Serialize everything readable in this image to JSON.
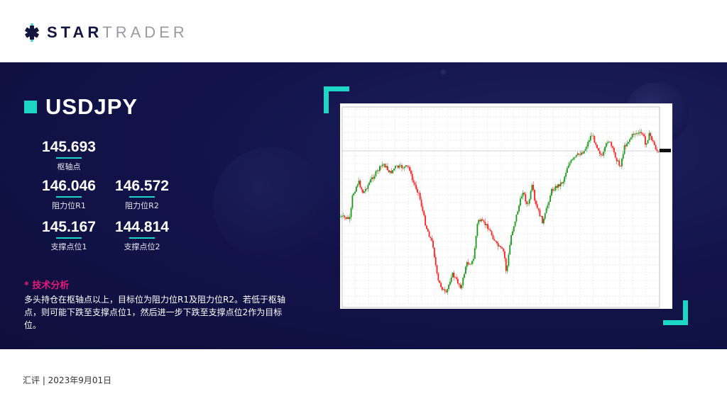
{
  "brand": {
    "logo_bold": "STAR",
    "logo_light": "TRADER"
  },
  "pair": "USDJPY",
  "levels": {
    "pivot": {
      "value": "145.693",
      "label": "枢轴点"
    },
    "r1": {
      "value": "146.046",
      "label": "阻力位R1"
    },
    "r2": {
      "value": "146.572",
      "label": "阻力位R2"
    },
    "s1": {
      "value": "145.167",
      "label": "支撑点位1"
    },
    "s2": {
      "value": "144.814",
      "label": "支撑点位2"
    }
  },
  "analysis": {
    "heading": "* 技术分析",
    "body": "多头持仓在枢轴点以上，目标位为阻力位R1及阻力位R2。若低于枢轴点，则可能下跌至支撑点位1，然后进一步下跌至支撑点位2作为目标位。"
  },
  "footer": "汇评 | 2023年9月01日",
  "colors": {
    "accent": "#1ed6c6",
    "highlight": "#e6197a",
    "background": "#12134a",
    "bull": "#1a9a1a",
    "bear": "#ff2020"
  }
}
